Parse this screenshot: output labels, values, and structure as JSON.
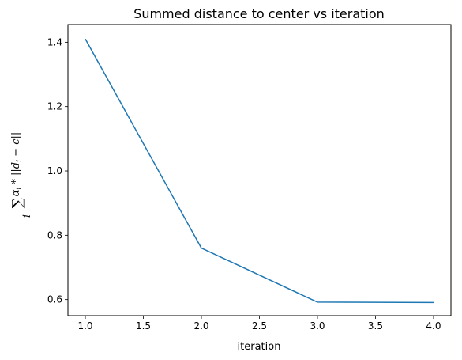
{
  "chart_data": {
    "type": "line",
    "title": "Summed distance to center vs iteration",
    "xlabel": "iteration",
    "ylabel": "∑ᵢ αᵢ * ||dᵢ − c||",
    "x": [
      1.0,
      2.0,
      3.0,
      4.0
    ],
    "series": [
      {
        "values": [
          1.41,
          0.76,
          0.592,
          0.591
        ]
      }
    ],
    "xlim": [
      0.85,
      4.15
    ],
    "ylim": [
      0.55,
      1.455
    ],
    "xticks": [
      "1.0",
      "1.5",
      "2.0",
      "2.5",
      "3.0",
      "3.5",
      "4.0"
    ],
    "yticks": [
      "0.6",
      "0.8",
      "1.0",
      "1.2",
      "1.4"
    ],
    "grid": false,
    "line_color": "#1f77b4"
  }
}
